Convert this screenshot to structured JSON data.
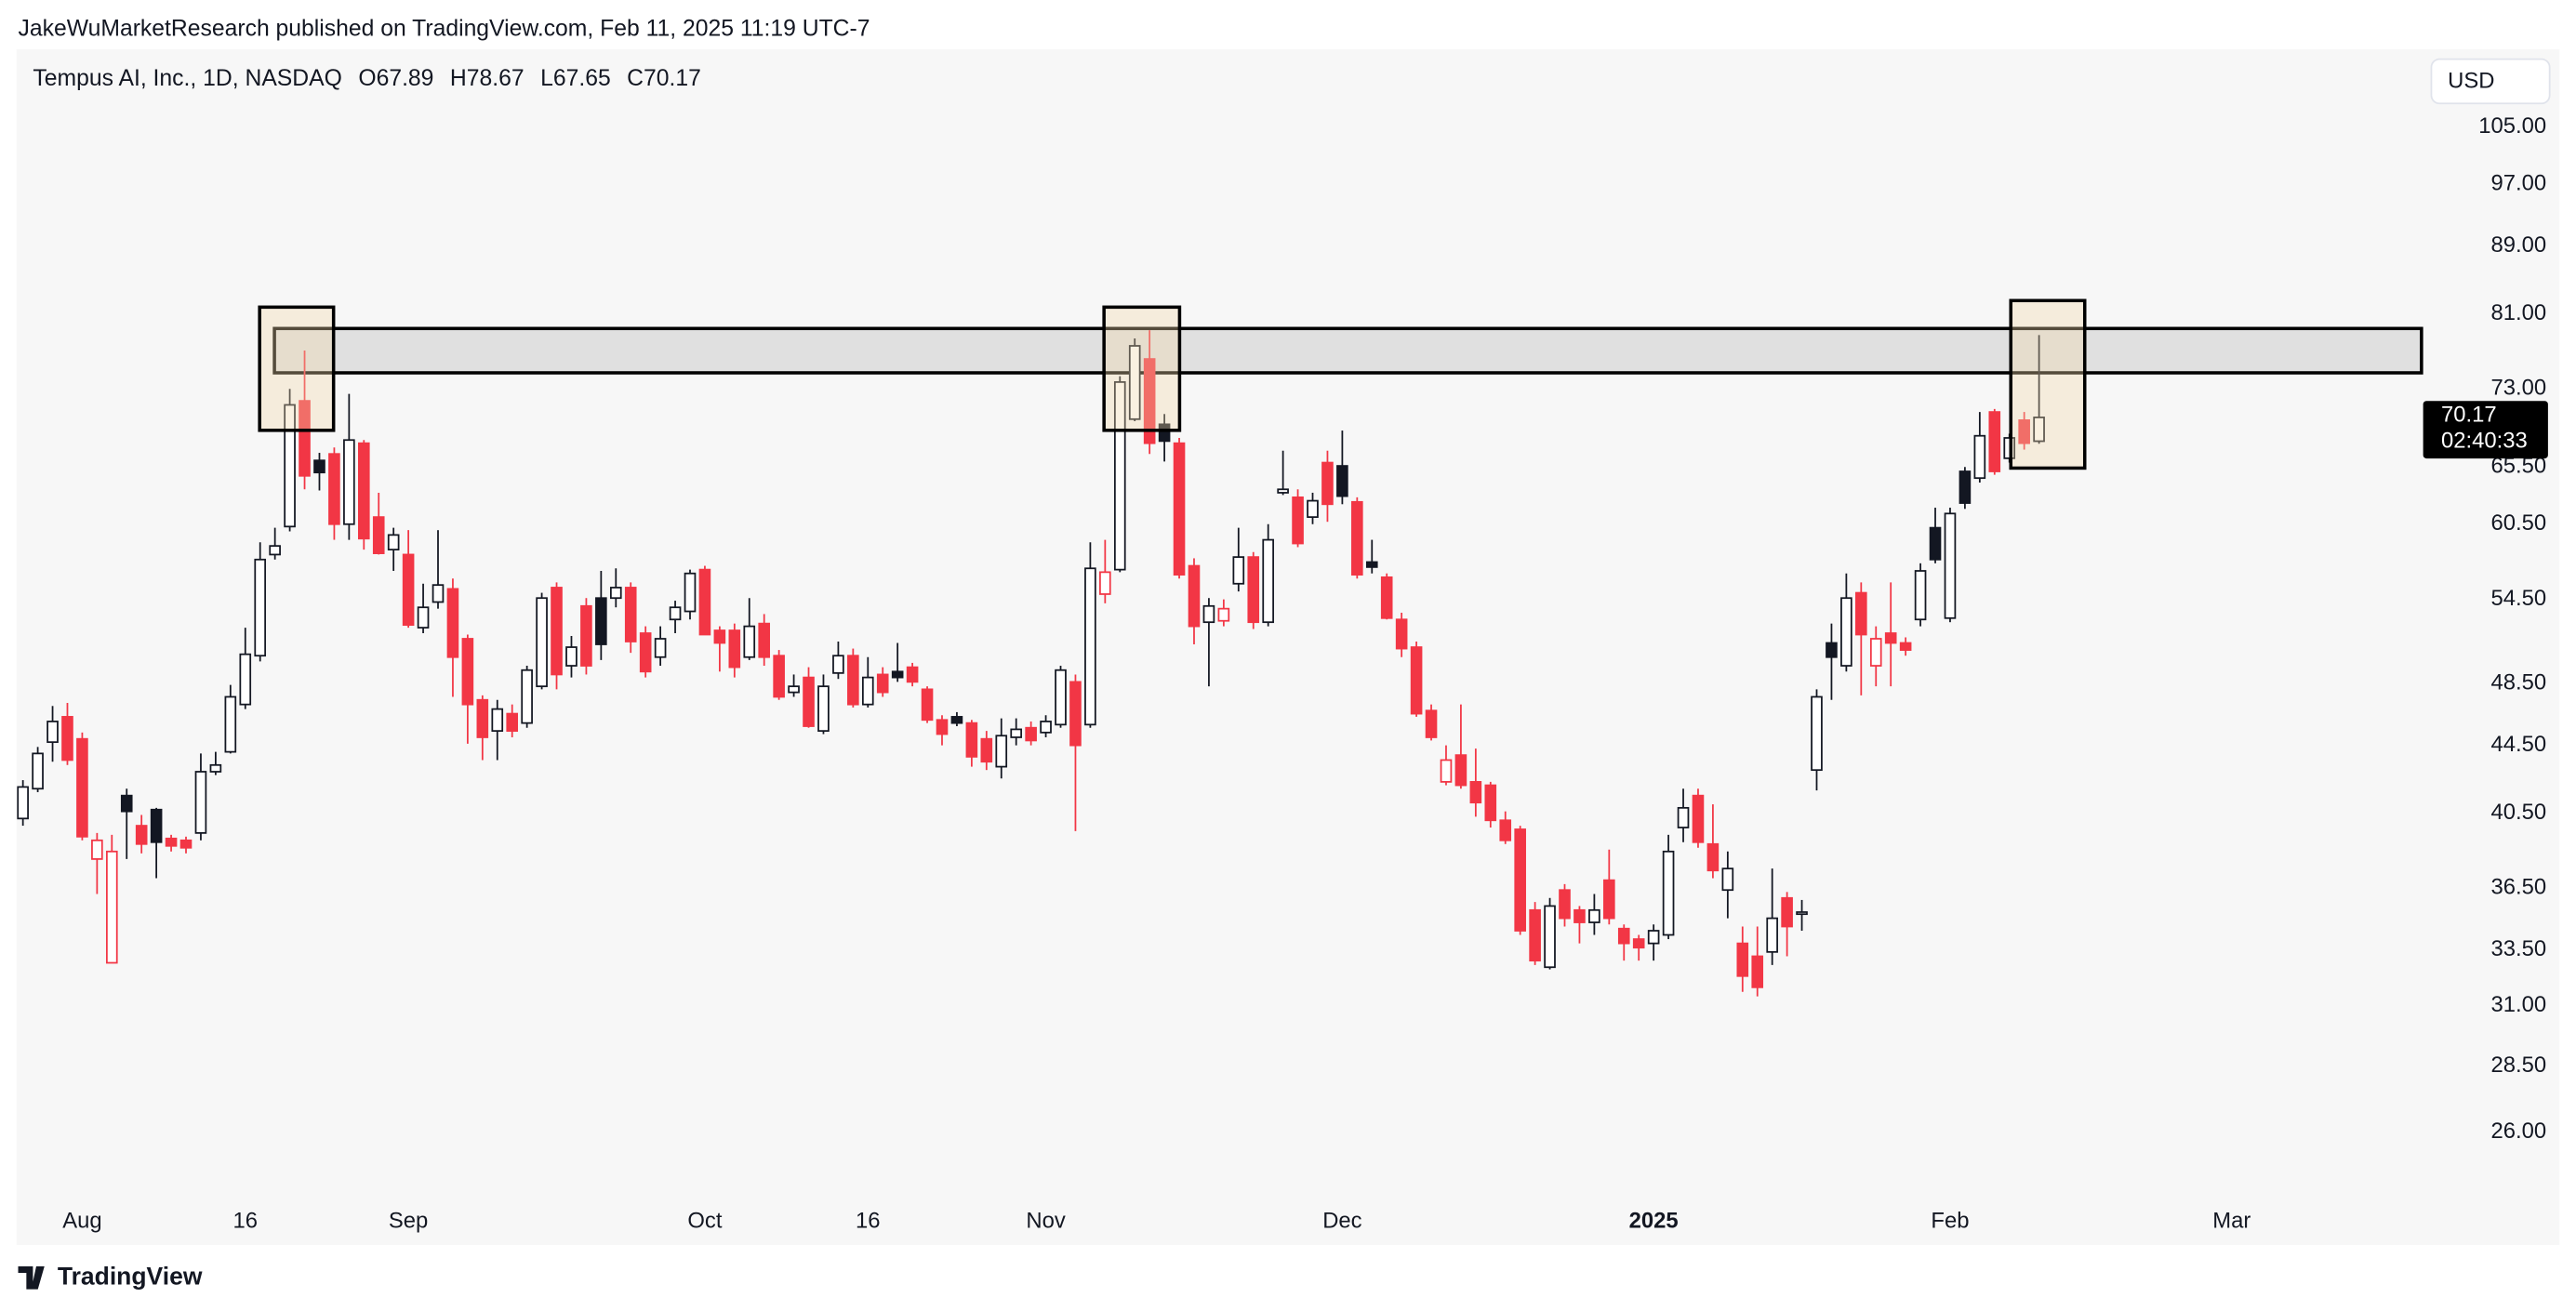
{
  "header": "JakeWuMarketResearch published on TradingView.com, Feb 11, 2025 11:19 UTC-7",
  "footer": "TradingView",
  "chart_data": {
    "type": "candlestick",
    "symbol": "Tempus AI, Inc., 1D, NASDAQ",
    "legend_keys": [
      "O",
      "H",
      "L",
      "C"
    ],
    "currency": "USD",
    "countdown": "02:40:33",
    "log_scale": true,
    "grid": false,
    "up_color": "#131722",
    "down_color": "#f23645",
    "categories": [
      null,
      null,
      null,
      null,
      "Aug",
      null,
      null,
      null,
      null,
      null,
      null,
      null,
      null,
      null,
      null,
      "16",
      null,
      null,
      null,
      null,
      null,
      null,
      null,
      null,
      null,
      null,
      "Sep",
      null,
      null,
      null,
      null,
      null,
      null,
      null,
      null,
      null,
      null,
      null,
      null,
      null,
      null,
      null,
      null,
      null,
      null,
      null,
      "Oct",
      null,
      null,
      null,
      null,
      null,
      null,
      null,
      null,
      null,
      null,
      "16",
      null,
      null,
      null,
      null,
      null,
      null,
      null,
      null,
      null,
      null,
      null,
      "Nov",
      null,
      null,
      null,
      null,
      null,
      null,
      null,
      null,
      null,
      null,
      null,
      null,
      null,
      null,
      null,
      null,
      null,
      null,
      null,
      "Dec",
      null,
      null,
      null,
      null,
      null,
      null,
      null,
      null,
      null,
      null,
      null,
      null,
      null,
      null,
      null,
      null,
      null,
      null,
      null,
      null,
      "2025",
      null,
      null,
      null,
      null,
      null,
      null,
      null,
      null,
      null,
      null,
      null,
      null,
      null,
      null,
      null,
      null,
      null,
      null,
      null,
      "Feb",
      null,
      null,
      null,
      null,
      null,
      null,
      null,
      null,
      null,
      null,
      null,
      null,
      null,
      null,
      null,
      null,
      null,
      null,
      "Mar",
      null,
      null,
      null,
      null,
      null,
      null,
      null,
      null,
      null,
      null,
      null,
      null
    ],
    "open": [
      40.2,
      41.9,
      44.7,
      46.3,
      44.9,
      38.0,
      32.9,
      41.5,
      39.8,
      40.7,
      39.1,
      39.0,
      39.4,
      42.9,
      44.1,
      47.1,
      50.4,
      58.0,
      60.3,
      71.8,
      66.1,
      66.7,
      60.5,
      67.7,
      61.1,
      58.4,
      58.0,
      52.4,
      54.3,
      55.3,
      51.6,
      47.4,
      45.4,
      46.5,
      45.9,
      48.3,
      55.4,
      49.7,
      54.0,
      54.6,
      54.6,
      55.4,
      52.0,
      50.3,
      53.0,
      53.6,
      56.8,
      52.2,
      52.2,
      50.3,
      52.7,
      50.4,
      47.9,
      48.9,
      45.4,
      49.2,
      50.4,
      47.1,
      49.1,
      49.3,
      49.6,
      48.1,
      46.1,
      46.3,
      45.9,
      44.9,
      43.2,
      45.0,
      45.6,
      45.3,
      45.8,
      48.6,
      45.8,
      54.9,
      56.8,
      70.0,
      76.1,
      69.5,
      67.7,
      57.1,
      52.8,
      52.9,
      55.7,
      57.8,
      52.8,
      63.2,
      62.8,
      61.1,
      65.9,
      65.6,
      62.4,
      57.4,
      56.2,
      53.0,
      51.0,
      46.7,
      42.3,
      43.9,
      42.3,
      42.1,
      40.1,
      39.6,
      35.4,
      32.7,
      36.4,
      35.4,
      34.8,
      36.9,
      34.5,
      34.0,
      33.8,
      34.2,
      39.7,
      41.5,
      38.8,
      36.4,
      33.8,
      33.2,
      33.4,
      36.0,
      35.2,
      43.0,
      51.3,
      49.7,
      55.0,
      49.7,
      52.0,
      51.3,
      53.0,
      60.2,
      53.1,
      65.1,
      64.5,
      70.7,
      66.3,
      69.9,
      67.89,
      null,
      null,
      null,
      null,
      null,
      null,
      null,
      null,
      null,
      null,
      null,
      null,
      null,
      null,
      null,
      null,
      null,
      null,
      null,
      null,
      null,
      null,
      null,
      null,
      null
    ],
    "high": [
      42.4,
      44.4,
      47.0,
      47.2,
      45.3,
      39.4,
      39.3,
      41.9,
      40.4,
      40.8,
      39.3,
      39.2,
      44.0,
      44.1,
      48.4,
      52.4,
      59.0,
      60.2,
      73.0,
      77.0,
      66.8,
      67.3,
      72.5,
      68.0,
      63.2,
      60.2,
      60.0,
      55.7,
      60.0,
      56.1,
      51.9,
      47.7,
      47.4,
      47.1,
      49.7,
      55.0,
      55.8,
      51.8,
      54.6,
      56.7,
      56.9,
      55.8,
      52.5,
      52.5,
      54.4,
      56.8,
      57.1,
      52.5,
      52.7,
      54.6,
      53.4,
      50.8,
      49.1,
      49.6,
      49.1,
      51.4,
      50.9,
      50.3,
      49.6,
      51.3,
      49.9,
      48.3,
      46.4,
      46.6,
      46.1,
      45.4,
      46.2,
      46.2,
      46.0,
      46.4,
      49.7,
      49.1,
      59.0,
      59.2,
      74.3,
      78.3,
      79.2,
      70.5,
      68.2,
      57.7,
      54.6,
      54.5,
      60.2,
      58.2,
      60.5,
      67.0,
      63.5,
      63.2,
      67.0,
      68.9,
      62.8,
      59.2,
      56.5,
      53.5,
      51.4,
      47.1,
      44.5,
      47.1,
      44.3,
      42.3,
      40.6,
      39.8,
      35.8,
      36.0,
      36.7,
      35.6,
      36.2,
      38.5,
      34.7,
      34.2,
      34.7,
      39.3,
      41.9,
      41.9,
      41.0,
      38.4,
      34.6,
      34.6,
      37.5,
      36.3,
      35.9,
      48.1,
      52.7,
      56.5,
      55.8,
      52.5,
      55.8,
      51.7,
      57.3,
      61.9,
      61.9,
      65.5,
      70.7,
      71.0,
      68.6,
      70.7,
      78.67,
      null,
      null,
      null,
      null,
      null,
      null,
      null,
      null,
      null,
      null,
      null,
      null,
      null,
      null,
      null,
      null,
      null,
      null,
      null,
      null,
      null,
      null,
      null,
      null,
      null
    ],
    "low": [
      39.8,
      41.7,
      43.5,
      43.3,
      39.0,
      36.2,
      32.9,
      38.0,
      38.3,
      37.0,
      38.4,
      38.3,
      39.0,
      42.7,
      44.0,
      46.8,
      50.0,
      57.6,
      59.9,
      63.5,
      63.4,
      59.2,
      59.2,
      58.4,
      58.0,
      56.7,
      52.4,
      52.0,
      53.8,
      47.6,
      44.6,
      43.6,
      43.6,
      45.0,
      45.6,
      48.1,
      48.1,
      48.9,
      49.1,
      50.1,
      53.9,
      50.6,
      48.9,
      49.7,
      52.0,
      53.0,
      51.9,
      49.3,
      48.9,
      50.1,
      49.7,
      47.4,
      47.6,
      45.6,
      45.2,
      48.8,
      46.9,
      46.9,
      47.6,
      48.6,
      48.3,
      45.9,
      44.5,
      45.7,
      43.2,
      43.0,
      42.5,
      44.5,
      44.5,
      45.0,
      45.6,
      39.5,
      45.6,
      54.2,
      56.6,
      69.8,
      66.7,
      66.0,
      56.1,
      51.2,
      48.3,
      52.5,
      55.1,
      52.3,
      52.5,
      63.0,
      58.6,
      60.5,
      60.7,
      62.2,
      56.1,
      56.5,
      53.0,
      50.3,
      46.3,
      44.8,
      42.1,
      41.9,
      40.3,
      39.7,
      38.8,
      34.2,
      32.8,
      32.6,
      34.6,
      33.8,
      34.2,
      34.7,
      33.0,
      33.0,
      33.0,
      34.0,
      38.9,
      38.6,
      37.0,
      35.0,
      31.6,
      31.4,
      32.8,
      33.2,
      34.4,
      41.8,
      47.4,
      49.3,
      47.7,
      48.3,
      48.3,
      50.4,
      52.5,
      57.3,
      52.8,
      61.8,
      64.1,
      64.8,
      65.9,
      67.1,
      67.65,
      null,
      null,
      null,
      null,
      null,
      null,
      null,
      null,
      null,
      null,
      null,
      null,
      null,
      null,
      null,
      null,
      null,
      null,
      null,
      null,
      null,
      null,
      null,
      null,
      null
    ],
    "close": [
      42.0,
      44.0,
      46.0,
      43.6,
      39.2,
      39.0,
      38.4,
      40.6,
      38.8,
      38.9,
      38.7,
      38.6,
      42.9,
      43.3,
      47.6,
      50.5,
      57.6,
      58.7,
      71.4,
      64.7,
      65.0,
      60.5,
      68.0,
      59.3,
      58.1,
      59.6,
      52.6,
      53.9,
      55.6,
      50.3,
      47.1,
      45.0,
      46.8,
      45.4,
      49.4,
      54.6,
      49.1,
      51.0,
      49.7,
      51.2,
      55.4,
      51.4,
      49.3,
      51.6,
      53.9,
      56.5,
      51.9,
      51.3,
      49.6,
      52.5,
      50.3,
      47.6,
      48.3,
      45.7,
      48.3,
      50.4,
      47.1,
      48.9,
      47.9,
      48.9,
      48.6,
      46.1,
      45.2,
      45.9,
      43.8,
      43.5,
      45.1,
      45.5,
      44.8,
      46.0,
      49.4,
      44.5,
      56.9,
      56.6,
      73.7,
      77.5,
      67.7,
      67.9,
      56.4,
      52.5,
      54.0,
      53.8,
      57.8,
      52.8,
      59.2,
      63.5,
      58.9,
      62.5,
      62.2,
      62.9,
      56.4,
      57.0,
      53.1,
      50.9,
      46.5,
      45.0,
      43.6,
      42.1,
      41.1,
      40.1,
      39.0,
      34.4,
      33.0,
      35.6,
      35.0,
      34.8,
      35.4,
      35.0,
      33.8,
      33.6,
      34.4,
      38.4,
      40.8,
      38.9,
      37.4,
      37.5,
      32.3,
      31.8,
      35.0,
      34.6,
      35.3,
      47.6,
      50.3,
      54.6,
      51.9,
      51.6,
      51.3,
      50.8,
      56.7,
      57.6,
      61.4,
      62.3,
      68.4,
      65.1,
      68.2,
      67.7,
      70.17,
      null,
      null,
      null,
      null,
      null,
      null,
      null,
      null,
      null,
      null,
      null,
      null,
      null,
      null,
      null,
      null,
      null,
      null,
      null,
      null,
      null,
      null,
      null,
      null,
      null
    ],
    "ylim": [
      23.7,
      117
    ],
    "yticks": [
      {
        "value": 105,
        "label": "105.00"
      },
      {
        "value": 97,
        "label": "97.00"
      },
      {
        "value": 89,
        "label": "89.00"
      },
      {
        "value": 81,
        "label": "81.00"
      },
      {
        "value": 73,
        "label": "73.00"
      },
      {
        "value": 65.5,
        "label": "65.50"
      },
      {
        "value": 60.5,
        "label": "60.50"
      },
      {
        "value": 54.5,
        "label": "54.50"
      },
      {
        "value": 48.5,
        "label": "48.50"
      },
      {
        "value": 44.5,
        "label": "44.50"
      },
      {
        "value": 40.5,
        "label": "40.50"
      },
      {
        "value": 36.5,
        "label": "36.50"
      },
      {
        "value": 33.5,
        "label": "33.50"
      },
      {
        "value": 31,
        "label": "31.00"
      },
      {
        "value": 28.5,
        "label": "28.50"
      },
      {
        "value": 26,
        "label": "26.00"
      }
    ]
  }
}
